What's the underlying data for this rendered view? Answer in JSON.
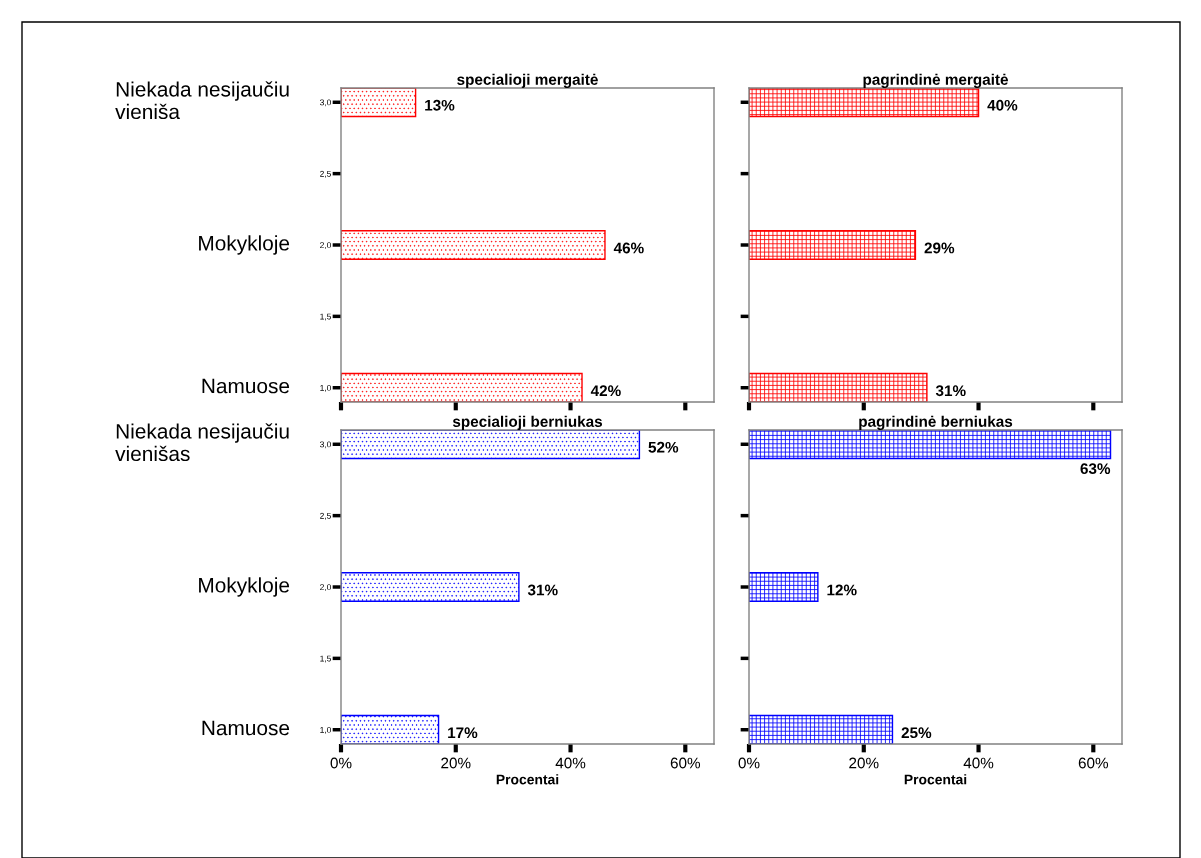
{
  "chart_data": [
    {
      "type": "bar",
      "orientation": "horizontal",
      "title": "specialioji mergaitė",
      "x": [
        3,
        2,
        1
      ],
      "values": [
        13,
        46,
        42
      ],
      "value_labels": [
        "13%",
        "46%",
        "42%"
      ],
      "color": "#ff0000",
      "xlim": [
        0,
        65
      ],
      "xticks": [
        {
          "value": 0,
          "label": null
        },
        {
          "value": 20,
          "label": null
        },
        {
          "value": 40,
          "label": null
        },
        {
          "value": 60,
          "label": null
        }
      ],
      "ylim": [
        0.9,
        3.1
      ],
      "yticks": [
        {
          "value": 1,
          "label": "1,0"
        },
        {
          "value": 1.5,
          "label": "1,5"
        },
        {
          "value": 2,
          "label": "2,0"
        },
        {
          "value": 2.5,
          "label": "2,5"
        },
        {
          "value": 3,
          "label": "3,0"
        }
      ],
      "tick_labels": "y",
      "annotations": [
        "Niekada nesijaučiu\nvieniša",
        "Mokykloje",
        "Namuose"
      ]
    },
    {
      "type": "bar",
      "orientation": "horizontal",
      "title": "pagrindinė mergaitė",
      "x": [
        3,
        2,
        1
      ],
      "values": [
        40,
        29,
        31
      ],
      "value_labels": [
        "40%",
        "29%",
        "31%"
      ],
      "color": "#ff0000",
      "xlim": [
        0,
        65
      ],
      "xticks": [
        {
          "value": 0,
          "label": null
        },
        {
          "value": 20,
          "label": null
        },
        {
          "value": 40,
          "label": null
        },
        {
          "value": 60,
          "label": null
        }
      ],
      "ylim": [
        0.9,
        3.1
      ],
      "yticks": [
        {
          "value": 1,
          "label": null
        },
        {
          "value": 1.5,
          "label": null
        },
        {
          "value": 2,
          "label": null
        },
        {
          "value": 2.5,
          "label": null
        },
        {
          "value": 3,
          "label": null
        }
      ],
      "tick_labels": false
    },
    {
      "type": "bar",
      "orientation": "horizontal",
      "title": "specialioji berniukas",
      "xlabel": "Procentai",
      "x": [
        3,
        2,
        1
      ],
      "values": [
        52,
        31,
        17
      ],
      "value_labels": [
        "52%",
        "31%",
        "17%"
      ],
      "color": "#0000ff",
      "xlim": [
        0,
        65
      ],
      "xticks": [
        {
          "value": 0,
          "label": "0%"
        },
        {
          "value": 20,
          "label": "20%"
        },
        {
          "value": 40,
          "label": "40%"
        },
        {
          "value": 60,
          "label": "60%"
        }
      ],
      "ylim": [
        0.9,
        3.1
      ],
      "yticks": [
        {
          "value": 1,
          "label": "1,0"
        },
        {
          "value": 1.5,
          "label": "1,5"
        },
        {
          "value": 2,
          "label": "2,0"
        },
        {
          "value": 2.5,
          "label": "2,5"
        },
        {
          "value": 3,
          "label": "3,0"
        }
      ],
      "annotations": [
        "Niekada nesijaučiu\nvienišas",
        "Mokykloje",
        "Namuose"
      ]
    },
    {
      "type": "bar",
      "orientation": "horizontal",
      "title": "pagrindinė berniukas",
      "xlabel": "Procentai",
      "x": [
        3,
        2,
        1
      ],
      "values": [
        63,
        12,
        25
      ],
      "value_labels": [
        "63%",
        "12%",
        "25%"
      ],
      "color": "#0000ff",
      "xlim": [
        0,
        65
      ],
      "xticks": [
        {
          "value": 0,
          "label": "0%"
        },
        {
          "value": 20,
          "label": "20%"
        },
        {
          "value": 40,
          "label": "40%"
        },
        {
          "value": 60,
          "label": "60%"
        }
      ],
      "ylim": [
        0.9,
        3.1
      ],
      "yticks": [
        {
          "value": 1,
          "label": null
        },
        {
          "value": 1.5,
          "label": null
        },
        {
          "value": 2,
          "label": null
        },
        {
          "value": 2.5,
          "label": null
        },
        {
          "value": 3,
          "label": null
        }
      ],
      "tick_labels": "x"
    }
  ]
}
